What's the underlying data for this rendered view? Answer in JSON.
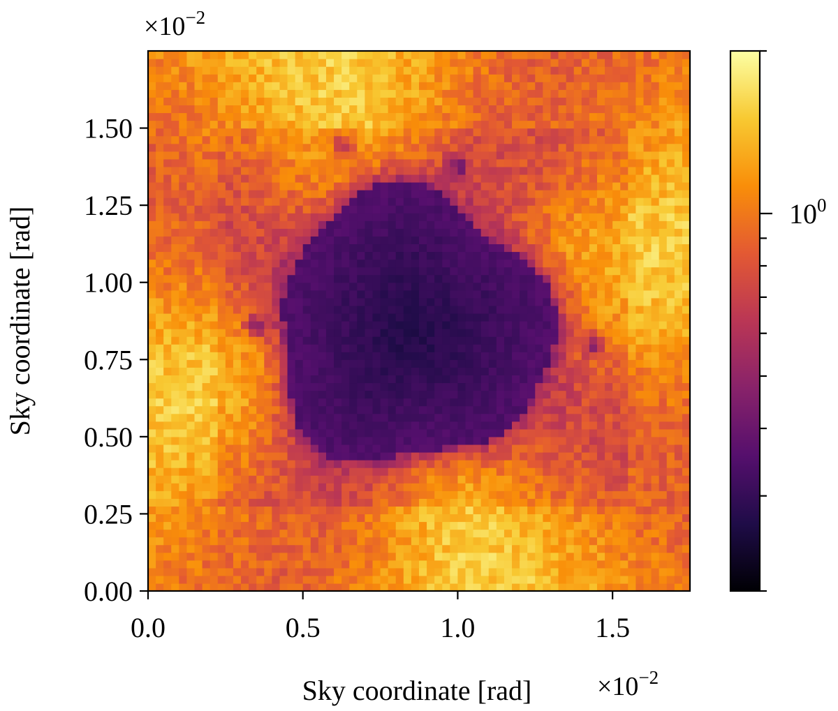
{
  "chart_data": {
    "type": "heatmap",
    "title": "",
    "xlabel": "Sky coordinate [rad]",
    "ylabel": "Sky coordinate [rad]",
    "x_scale_label": "×10",
    "x_scale_exp": "−2",
    "y_scale_label": "×10",
    "y_scale_exp": "−2",
    "xlim": [
      0.0,
      1.75
    ],
    "ylim": [
      0.0,
      1.75
    ],
    "xticks": [
      0.0,
      0.5,
      1.0,
      1.5
    ],
    "xtick_labels": [
      "0.0",
      "0.5",
      "1.0",
      "1.5"
    ],
    "yticks": [
      0.0,
      0.25,
      0.5,
      0.75,
      1.0,
      1.25,
      1.5
    ],
    "ytick_labels": [
      "0.00",
      "0.25",
      "0.50",
      "0.75",
      "1.00",
      "1.25",
      "1.50"
    ],
    "grid_size": 70,
    "colormap": "inferno",
    "colormap_stops": [
      "#000004",
      "#1f0c48",
      "#550f6d",
      "#88226a",
      "#ba3655",
      "#e35933",
      "#f98e09",
      "#f8c932",
      "#fcffa4"
    ],
    "colorbar": {
      "scale": "log",
      "min": 0.2,
      "max": 2.0,
      "labeled_tick_value": 1.0,
      "labeled_tick_base": "10",
      "labeled_tick_exp": "0",
      "minor_tick_values": [
        0.2,
        0.3,
        0.4,
        0.5,
        0.6,
        0.7,
        0.8,
        0.9,
        2.0
      ]
    },
    "field_description": "log-intensity map: bright ring (~1.2-1.6) with dark central cavity (~0.2-0.3) centered near (0.85, 0.85)",
    "dark_spots": [
      {
        "x": 1.0,
        "y": 1.38
      },
      {
        "x": 1.44,
        "y": 0.8
      },
      {
        "x": 0.35,
        "y": 0.86
      },
      {
        "x": 0.63,
        "y": 1.45
      }
    ]
  }
}
